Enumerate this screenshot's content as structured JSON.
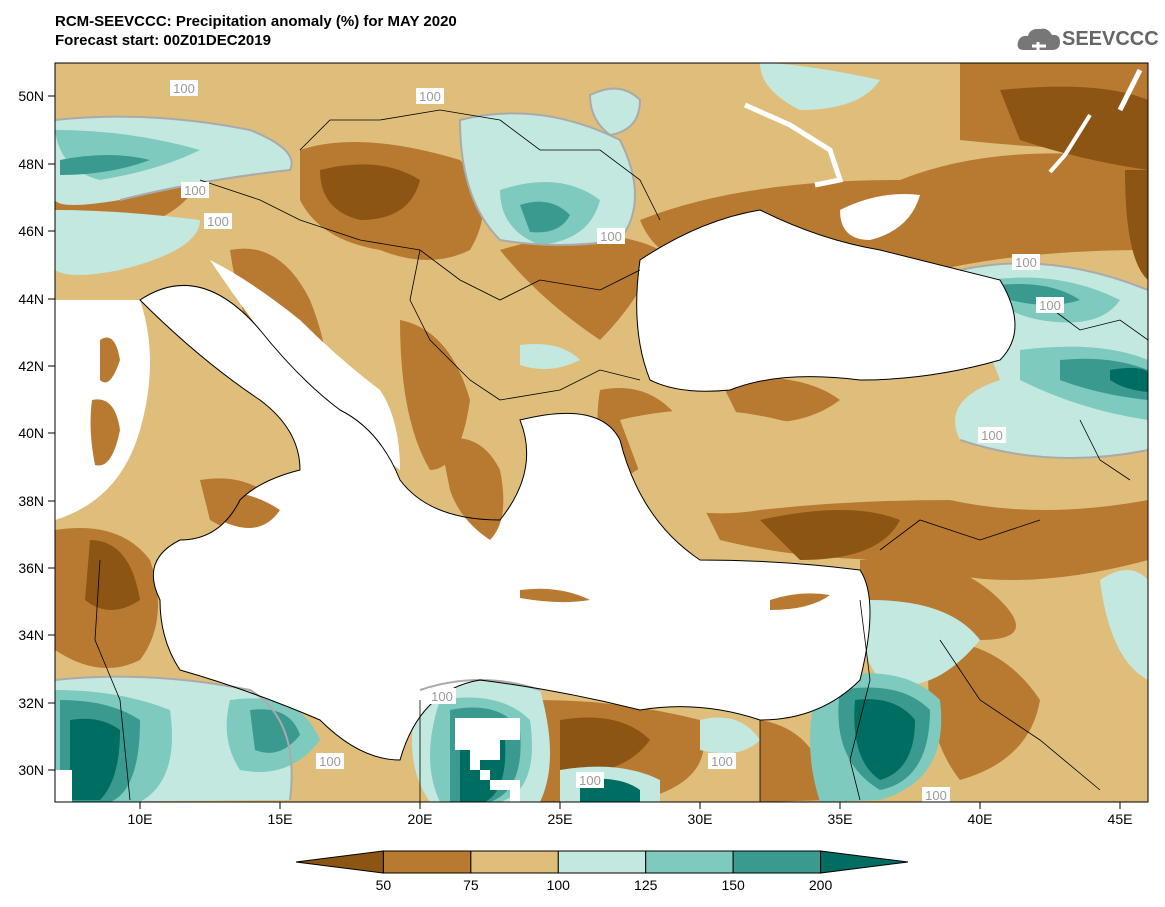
{
  "header": {
    "title": "RCM-SEEVCCC: Precipitation anomaly (%) for MAY 2020",
    "subtitle": "Forecast start: 00Z01DEC2019"
  },
  "logo": {
    "text": "SEEVCCC",
    "icon": "cloud-icon"
  },
  "map": {
    "lon_ticks": [
      "10E",
      "15E",
      "20E",
      "25E",
      "30E",
      "35E",
      "40E",
      "45E"
    ],
    "lat_ticks": [
      "50N",
      "48N",
      "46N",
      "44N",
      "42N",
      "40N",
      "38N",
      "36N",
      "34N",
      "32N",
      "30N"
    ],
    "contour_label": "100",
    "colors": {
      "lt50": "#8c5514",
      "c50_75": "#b87a30",
      "c75_100": "#dfbe7c",
      "c100_125": "#c3e8e0",
      "c125_150": "#7fcabe",
      "c150_200": "#3a9a90",
      "gt200": "#006d63",
      "sea": "#ffffff",
      "contour": "#aaaaaa"
    }
  },
  "colorbar": {
    "labels": [
      "50",
      "75",
      "100",
      "125",
      "150",
      "200"
    ],
    "colors": [
      "#8c5514",
      "#b87a30",
      "#dfbe7c",
      "#c3e8e0",
      "#7fcabe",
      "#3a9a90",
      "#006d63"
    ]
  }
}
